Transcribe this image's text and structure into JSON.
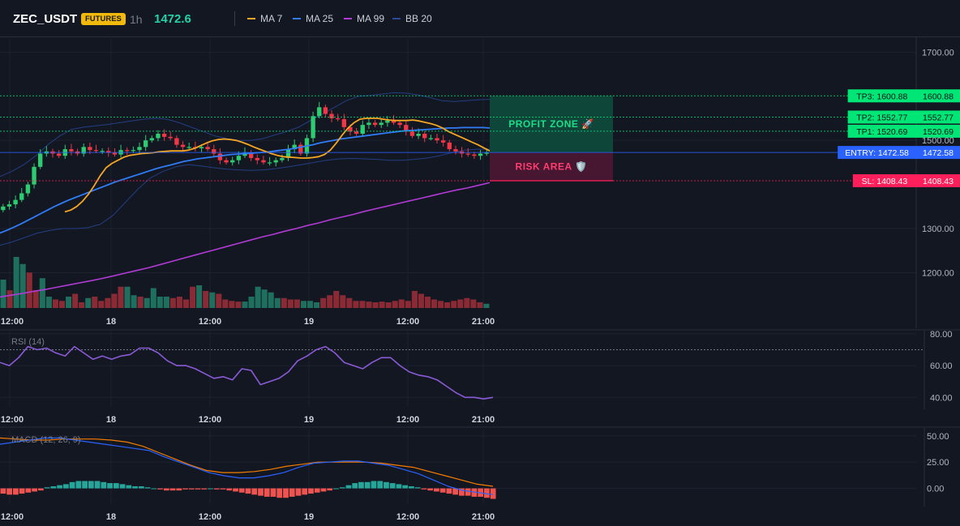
{
  "header": {
    "symbol": "ZEC_USDT",
    "badge": "FUTURES",
    "timeframe": "1h",
    "price": "1472.6",
    "legend": [
      {
        "name": "MA 7",
        "color": "#f5a623"
      },
      {
        "name": "MA 25",
        "color": "#2f7cf6"
      },
      {
        "name": "MA 99",
        "color": "#b23ad6"
      },
      {
        "name": "BB 20",
        "color": "#2a4a9a"
      }
    ]
  },
  "panels": {
    "rsi_label": "RSI (14)",
    "macd_label": "MACD (12, 26, 9)"
  },
  "zones": {
    "profit": "PROFIT ZONE 🚀",
    "risk": "RISK AREA 🛡️"
  },
  "colors": {
    "up": "#2ecc71",
    "down": "#f23645",
    "vol_up": "#1f6f5f",
    "vol_down": "#8a2a34",
    "entry": "#2962ff",
    "tp": "#00e676",
    "sl": "#ff1f5a"
  },
  "chart_data": [
    {
      "type": "candlestick",
      "title": "ZEC_USDT 1h",
      "x_ticks": [
        "12:00",
        "18",
        "12:00",
        "19",
        "12:00",
        "21:00"
      ],
      "y_ticks": [
        1700,
        1500,
        1300,
        1200
      ],
      "ylim": [
        1120,
        1730
      ],
      "levels": [
        {
          "label": "TP3: 1600.88",
          "value": 1600.88,
          "price": "1600.88",
          "kind": "tp"
        },
        {
          "label": "TP2: 1552.77",
          "value": 1552.77,
          "price": "1552.77",
          "kind": "tp"
        },
        {
          "label": "TP1: 1520.69",
          "value": 1520.69,
          "price": "1520.69",
          "kind": "tp"
        },
        {
          "label": "ENTRY: 1472.58",
          "value": 1472.58,
          "price": "1472.58",
          "kind": "entry"
        },
        {
          "label": "SL: 1408.43",
          "value": 1408.43,
          "price": "1408.43",
          "kind": "sl"
        }
      ],
      "closes": [
        1350,
        1355,
        1365,
        1380,
        1400,
        1440,
        1470,
        1475,
        1470,
        1465,
        1480,
        1475,
        1470,
        1485,
        1478,
        1476,
        1476,
        1472,
        1468,
        1478,
        1476,
        1478,
        1485,
        1500,
        1505,
        1515,
        1508,
        1505,
        1490,
        1485,
        1485,
        1482,
        1485,
        1480,
        1470,
        1455,
        1450,
        1455,
        1465,
        1472,
        1460,
        1455,
        1450,
        1450,
        1455,
        1460,
        1480,
        1490,
        1470,
        1505,
        1555,
        1575,
        1560,
        1550,
        1548,
        1530,
        1520,
        1515,
        1535,
        1540,
        1535,
        1540,
        1545,
        1540,
        1535,
        1520,
        1510,
        1515,
        1505,
        1505,
        1500,
        1495,
        1480,
        1475,
        1470,
        1468,
        1465,
        1470,
        1472
      ],
      "ma7": [
        1338,
        1342,
        1350,
        1362,
        1378,
        1398,
        1420,
        1438,
        1448,
        1455,
        1462,
        1466,
        1468,
        1470,
        1471,
        1472,
        1474,
        1475,
        1476,
        1476,
        1476,
        1478,
        1482,
        1488,
        1494,
        1499,
        1502,
        1503,
        1502,
        1500,
        1496,
        1491,
        1485,
        1480,
        1475,
        1470,
        1466,
        1463,
        1462,
        1461,
        1460,
        1460,
        1461,
        1463,
        1468,
        1478,
        1494,
        1512,
        1528,
        1540,
        1548,
        1550,
        1550,
        1550,
        1548,
        1546,
        1545,
        1545,
        1545,
        1546,
        1544,
        1541,
        1538,
        1534,
        1528,
        1520,
        1514,
        1508,
        1502,
        1496,
        1490,
        1483,
        1476
      ],
      "ma25": [
        1290,
        1296,
        1303,
        1310,
        1318,
        1326,
        1334,
        1342,
        1350,
        1357,
        1364,
        1370,
        1376,
        1382,
        1388,
        1394,
        1400,
        1406,
        1411,
        1416,
        1421,
        1426,
        1431,
        1436,
        1440,
        1444,
        1448,
        1452,
        1455,
        1458,
        1460,
        1462,
        1464,
        1466,
        1468,
        1469,
        1470,
        1471,
        1472,
        1473,
        1475,
        1477,
        1479,
        1481,
        1484,
        1487,
        1490,
        1494,
        1497,
        1500,
        1503,
        1505,
        1507,
        1509,
        1511,
        1513,
        1515,
        1517,
        1519,
        1521,
        1522,
        1523,
        1524,
        1525,
        1526,
        1527,
        1528,
        1528,
        1529,
        1529,
        1529,
        1529,
        1528
      ],
      "ma99": [
        1145,
        1149,
        1153,
        1158,
        1162,
        1167,
        1172,
        1177,
        1182,
        1187,
        1193,
        1199,
        1205,
        1211,
        1218,
        1225,
        1232,
        1239,
        1246,
        1253,
        1260,
        1267,
        1274,
        1281,
        1287,
        1294,
        1300,
        1307,
        1313,
        1320,
        1326,
        1332,
        1339,
        1345,
        1351,
        1357,
        1363,
        1369,
        1375,
        1381,
        1387,
        1392,
        1398,
        1404
      ],
      "bb_upper": [
        1418,
        1430,
        1445,
        1465,
        1490,
        1510,
        1525,
        1530,
        1533,
        1536,
        1540,
        1544,
        1548,
        1550,
        1548,
        1540,
        1530,
        1520,
        1510,
        1504,
        1500,
        1500,
        1504,
        1512,
        1520,
        1530,
        1545,
        1560,
        1575,
        1590,
        1600,
        1602,
        1605,
        1608,
        1607,
        1603,
        1597,
        1590,
        1588,
        1590,
        1592,
        1593
      ],
      "bb_lower": [
        1262,
        1270,
        1280,
        1290,
        1296,
        1300,
        1300,
        1302,
        1310,
        1330,
        1360,
        1390,
        1415,
        1430,
        1440,
        1445,
        1442,
        1438,
        1435,
        1433,
        1432,
        1433,
        1436,
        1440,
        1445,
        1450,
        1455,
        1458,
        1459,
        1458,
        1457,
        1455,
        1455,
        1457,
        1460,
        1465,
        1472,
        1478,
        1480,
        1480
      ],
      "volume": [
        40,
        25,
        72,
        62,
        50,
        25,
        42,
        16,
        12,
        10,
        16,
        20,
        8,
        14,
        16,
        10,
        14,
        20,
        30,
        30,
        18,
        16,
        14,
        28,
        16,
        16,
        14,
        16,
        12,
        30,
        32,
        24,
        22,
        20,
        12,
        10,
        9,
        9,
        16,
        30,
        26,
        22,
        14,
        14,
        12,
        12,
        10,
        10,
        8,
        14,
        18,
        24,
        18,
        14,
        10,
        10,
        9,
        8,
        9,
        8,
        10,
        12,
        10,
        24,
        20,
        16,
        12,
        10,
        8,
        10,
        12,
        14,
        12,
        8,
        6
      ],
      "volume_up": [
        true,
        false,
        true,
        true,
        false,
        false,
        true,
        true,
        false,
        false,
        true,
        false,
        false,
        true,
        false,
        false,
        false,
        false,
        false,
        true,
        true,
        false,
        true,
        true,
        true,
        true,
        false,
        false,
        false,
        false,
        true,
        false,
        true,
        false,
        false,
        false,
        false,
        true,
        true,
        true,
        true,
        true,
        true,
        false,
        false,
        false,
        true,
        true,
        true,
        false,
        false,
        false,
        false,
        false,
        false,
        false,
        false,
        false,
        false,
        false,
        false,
        false,
        false,
        false,
        false,
        false,
        false,
        false,
        false,
        false,
        false,
        false,
        false,
        false,
        true
      ]
    },
    {
      "type": "line",
      "title": "RSI (14)",
      "x_ticks": [
        "12:00",
        "18",
        "12:00",
        "19",
        "12:00",
        "21:00"
      ],
      "y_ticks": [
        80,
        60,
        40
      ],
      "ylim": [
        34,
        82
      ],
      "overbought": 70,
      "values": [
        62,
        60,
        65,
        72,
        70,
        71,
        68,
        66,
        72,
        68,
        64,
        66,
        64,
        66,
        67,
        71,
        71,
        68,
        63,
        60,
        60,
        58,
        55,
        52,
        53,
        51,
        58,
        57,
        48,
        50,
        52,
        56,
        63,
        66,
        70,
        72,
        68,
        62,
        60,
        58,
        62,
        65,
        65,
        60,
        56,
        54,
        53,
        51,
        47,
        43,
        40,
        40,
        39,
        40
      ]
    },
    {
      "type": "bar+line",
      "title": "MACD (12, 26, 9)",
      "x_ticks": [
        "12:00",
        "18",
        "12:00",
        "19",
        "12:00",
        "21:00"
      ],
      "y_ticks": [
        50.0,
        25.0,
        0.0
      ],
      "y_tick_labels": [
        "50.00",
        "25.00",
        "0.00"
      ],
      "ylim": [
        -15,
        56
      ],
      "macd": [
        42,
        44,
        46,
        48,
        48,
        46,
        44,
        42,
        40,
        38,
        36,
        30,
        25,
        20,
        15,
        12,
        10,
        10,
        12,
        15,
        20,
        24,
        25,
        26,
        26,
        24,
        22,
        18,
        14,
        8,
        2,
        -2,
        -4,
        -6
      ],
      "signal": [
        48,
        47,
        46,
        46,
        47,
        47,
        47,
        46,
        44,
        40,
        34,
        28,
        22,
        17,
        15,
        15,
        16,
        18,
        21,
        23,
        25,
        25,
        25,
        25,
        24,
        22,
        20,
        16,
        12,
        8,
        4,
        2
      ],
      "histogram": [
        -5,
        -6,
        -6,
        -5,
        -4,
        -3,
        -2,
        1,
        2,
        3,
        4,
        6,
        7,
        7,
        7,
        7,
        6,
        5,
        5,
        4,
        3,
        2,
        2,
        1,
        0,
        -1,
        -2,
        -2,
        -2,
        -1,
        -1,
        -1,
        -1,
        0,
        -1,
        -1,
        -2,
        -3,
        -4,
        -5,
        -6,
        -7,
        -8,
        -8,
        -9,
        -9,
        -8,
        -7,
        -6,
        -5,
        -4,
        -3,
        -2,
        0,
        1,
        3,
        5,
        6,
        6,
        7,
        7,
        6,
        5,
        4,
        3,
        2,
        1,
        -1,
        -2,
        -3,
        -4,
        -5,
        -6,
        -7,
        -7,
        -8,
        -8,
        -9,
        -10
      ]
    }
  ]
}
